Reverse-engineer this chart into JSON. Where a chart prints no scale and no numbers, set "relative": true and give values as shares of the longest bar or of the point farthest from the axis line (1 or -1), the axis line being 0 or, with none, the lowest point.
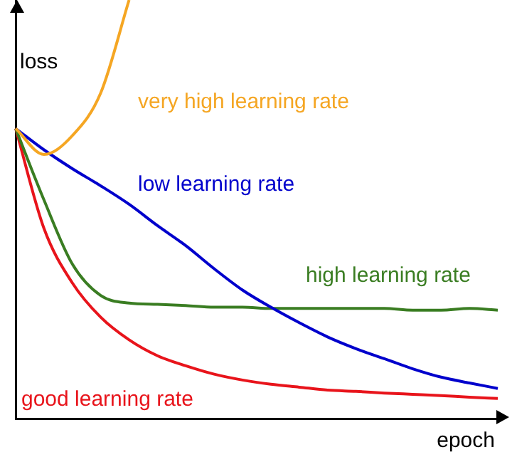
{
  "chart_data": {
    "type": "line",
    "relative": true,
    "ylabel": "loss",
    "xlabel": "epoch",
    "grid": false,
    "legend": false,
    "marker": "none",
    "line_style": "solid",
    "categories": [
      null,
      null,
      null,
      null,
      null,
      null,
      null,
      null,
      null,
      null,
      null,
      null,
      null,
      null,
      null,
      null,
      null,
      null
    ],
    "series": [
      {
        "name": "very high learning rate",
        "color": "#f5a623",
        "values": [
          0.693,
          0.631,
          0.676,
          0.778,
          1,
          null,
          null,
          null,
          null,
          null,
          null,
          null,
          null,
          null,
          null,
          null,
          null,
          null
        ]
      },
      {
        "name": "low learning rate",
        "color": "#0000cc",
        "values": [
          0.693,
          0.642,
          0.597,
          0.556,
          0.512,
          0.461,
          0.413,
          0.358,
          0.307,
          0.266,
          0.229,
          0.195,
          0.167,
          0.143,
          0.119,
          0.099,
          0.085,
          0.072
        ]
      },
      {
        "name": "high learning rate",
        "color": "#3a7d22",
        "values": [
          0.693,
          0.522,
          0.369,
          0.294,
          0.276,
          0.273,
          0.27,
          0.266,
          0.266,
          0.263,
          0.263,
          0.263,
          0.263,
          0.263,
          0.259,
          0.259,
          0.263,
          0.259
        ]
      },
      {
        "name": "good learning rate",
        "color": "#e8141b",
        "values": [
          0.693,
          0.454,
          0.324,
          0.242,
          0.188,
          0.15,
          0.126,
          0.106,
          0.092,
          0.082,
          0.075,
          0.068,
          0.065,
          0.061,
          0.058,
          0.055,
          0.051,
          0.048
        ]
      }
    ]
  }
}
